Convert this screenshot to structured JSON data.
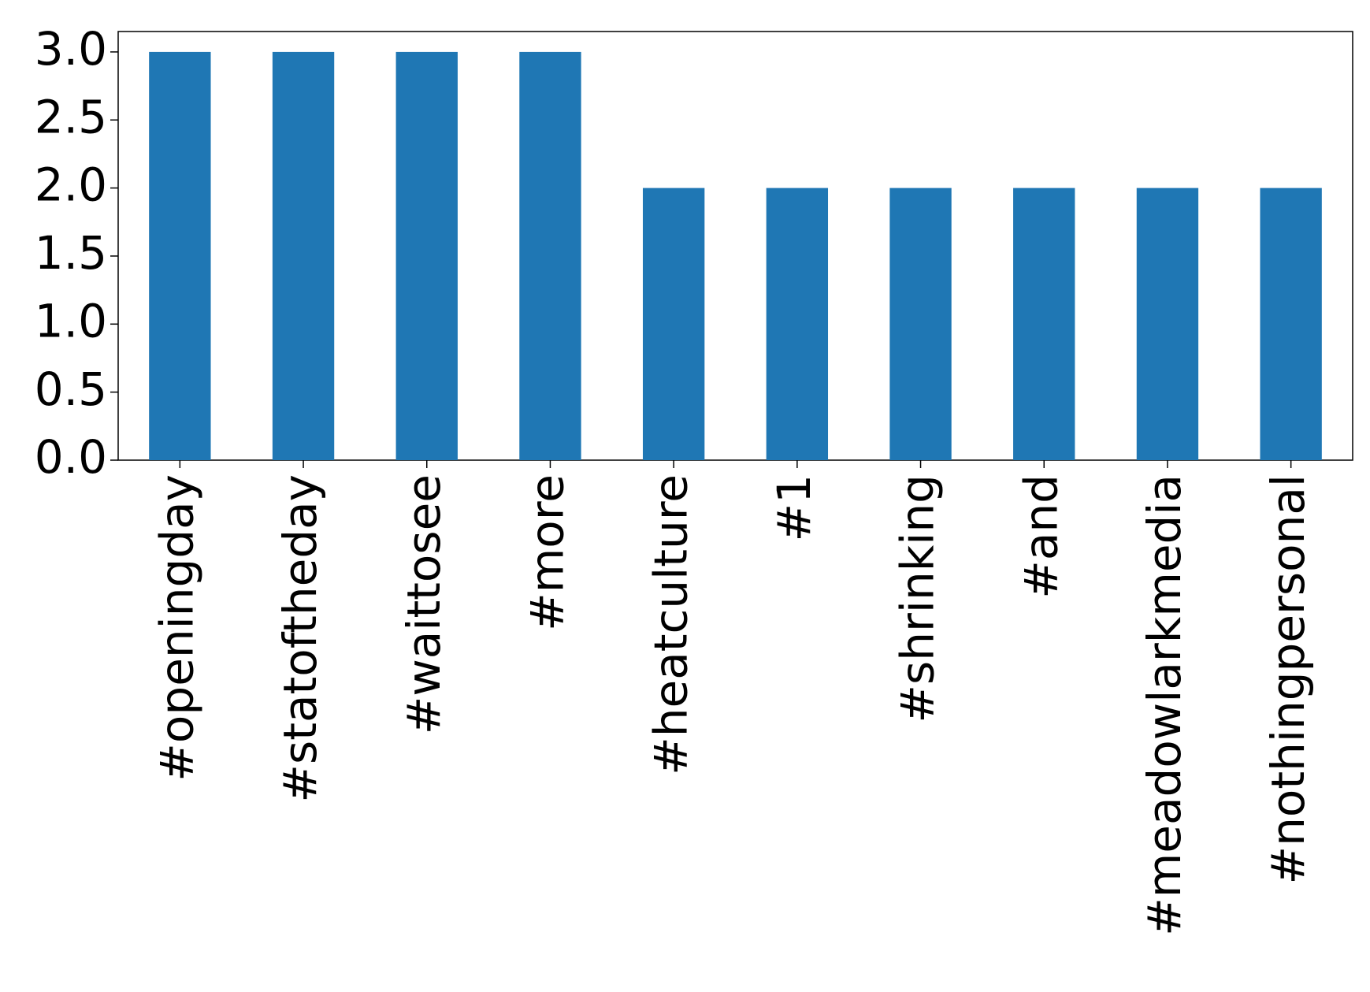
{
  "chart_data": {
    "type": "bar",
    "categories": [
      "#openingday",
      "#statoftheday",
      "#waittosee",
      "#more",
      "#heatculture",
      "#1",
      "#shrinking",
      "#and",
      "#meadowlarkmedia",
      "#nothingpersonal"
    ],
    "values": [
      3,
      3,
      3,
      3,
      2,
      2,
      2,
      2,
      2,
      2
    ],
    "color": "#1f77b4",
    "ylim": [
      0,
      3.15
    ],
    "yticks": [
      {
        "value": 0,
        "label": "0.0"
      },
      0.5,
      {
        "value": 1,
        "label": "1.0"
      },
      1.5,
      {
        "value": 2,
        "label": "2.0"
      },
      2.5,
      {
        "value": 3,
        "label": "3.0"
      }
    ],
    "grid": false
  }
}
